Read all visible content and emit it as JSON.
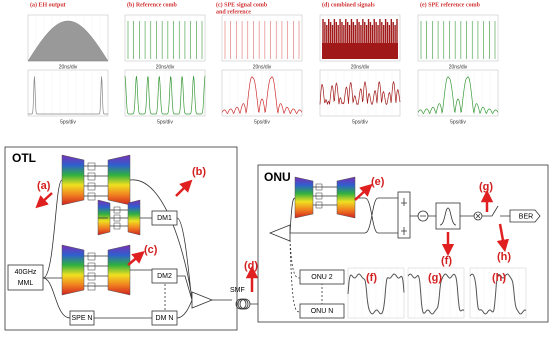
{
  "panels": [
    {
      "title": [
        "(a) EH output"
      ],
      "top_axis": "20ns/div",
      "bottom_axis": "5ps/div"
    },
    {
      "title": [
        "(b) Reference comb"
      ],
      "top_axis": "20ns/div",
      "bottom_axis": "5ps/div"
    },
    {
      "title": [
        "(c) SPE signal comb",
        "and reference"
      ],
      "top_axis": "20ns/div",
      "bottom_axis": "5ps/div"
    },
    {
      "title": [
        "(d) combined signals"
      ],
      "top_axis": "20ns/div",
      "bottom_axis": "5ps/div"
    },
    {
      "title": [
        "(e) SPE reference comb"
      ],
      "top_axis": "20ns/div",
      "bottom_axis": "5ps/div"
    }
  ],
  "otl": {
    "label": "OTL",
    "markers": [
      "(a)",
      "(b)",
      "(c)"
    ],
    "demux": [
      "DM1",
      "DM2",
      "DM N"
    ],
    "spe": "SPE N",
    "source": [
      "40GHz",
      "MML"
    ]
  },
  "link": {
    "fiber": "SMF",
    "marker": "(d)"
  },
  "onu": {
    "label": "ONU",
    "markers": [
      "(e)",
      "(g)",
      "(f)",
      "(h)"
    ],
    "ber": "BER",
    "others": [
      "ONU 2",
      "ONU N"
    ],
    "waveforms": [
      "(f)",
      "(g)",
      "(h)"
    ]
  }
}
